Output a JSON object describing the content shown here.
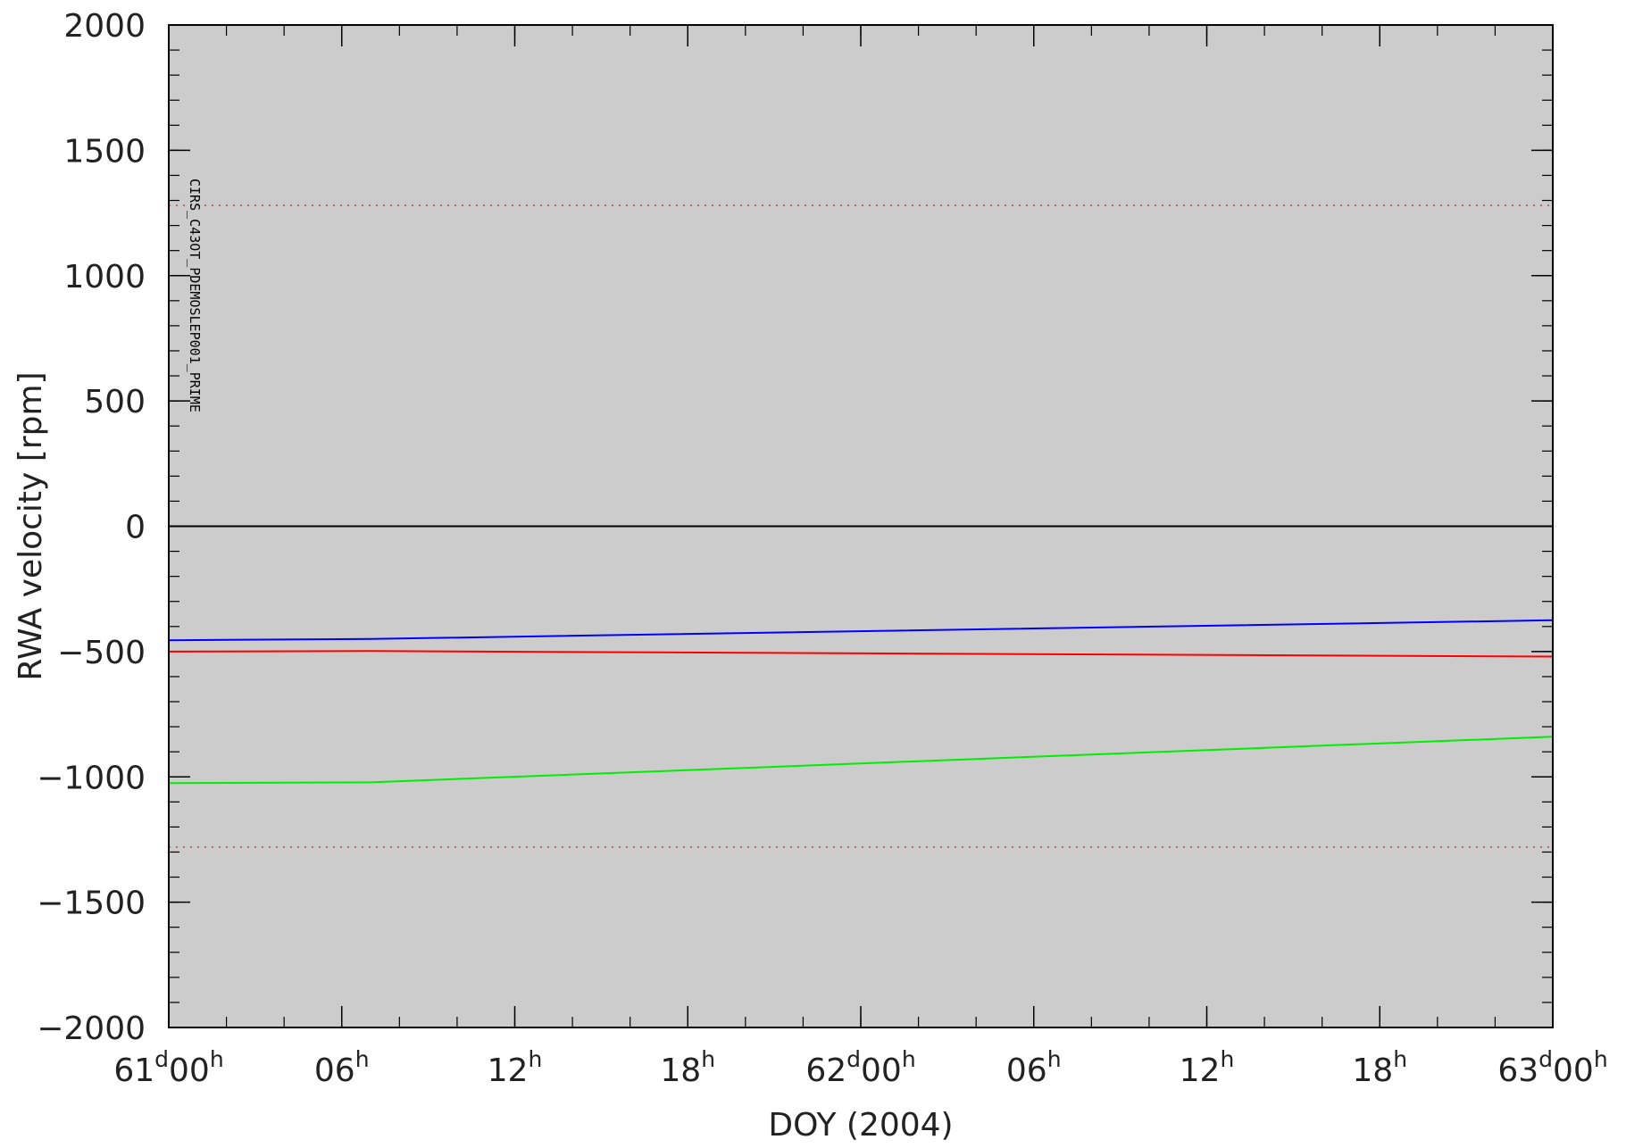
{
  "chart_data": {
    "type": "line",
    "xlabel": "DOY (2004)",
    "ylabel": "RWA velocity [rpm]",
    "xlim": [
      0,
      48
    ],
    "ylim": [
      -2000,
      2000
    ],
    "x_unit": "hours from 61d00h",
    "y_ticks": [
      2000,
      1500,
      1000,
      500,
      0,
      -500,
      -1000,
      -1500,
      -2000
    ],
    "y_tick_labels": [
      "2000",
      "1500",
      "1000",
      "500",
      "0",
      "−5​00",
      "−1000",
      "−1500",
      "−2000"
    ],
    "x_ticks": [
      {
        "x": 0,
        "main": "61",
        "sup1": "d",
        "main2": "00",
        "sup2": "h"
      },
      {
        "x": 6,
        "main": "06",
        "sup1": "h"
      },
      {
        "x": 12,
        "main": "12",
        "sup1": "h"
      },
      {
        "x": 18,
        "main": "18",
        "sup1": "h"
      },
      {
        "x": 24,
        "main": "62",
        "sup1": "d",
        "main2": "00",
        "sup2": "h"
      },
      {
        "x": 30,
        "main": "06",
        "sup1": "h"
      },
      {
        "x": 36,
        "main": "12",
        "sup1": "h"
      },
      {
        "x": 42,
        "main": "18",
        "sup1": "h"
      },
      {
        "x": 48,
        "main": "63",
        "sup1": "d",
        "main2": "00",
        "sup2": "h"
      }
    ],
    "limit_lines": [
      1280,
      -1280
    ],
    "annotation": {
      "text": "CIRS_C43OT_PDEMOSLEP001_PRIME",
      "x": 0.5
    },
    "series": [
      {
        "color": "#000000",
        "x": [
          0,
          7,
          48
        ],
        "y": [
          0,
          0,
          0
        ]
      },
      {
        "color": "#0000ff",
        "x": [
          0,
          7,
          48
        ],
        "y": [
          -455,
          -450,
          -375
        ]
      },
      {
        "color": "#ff0000",
        "x": [
          0,
          7,
          48
        ],
        "y": [
          -500,
          -498,
          -520
        ]
      },
      {
        "color": "#00ee00",
        "x": [
          0,
          7,
          48
        ],
        "y": [
          -1025,
          -1022,
          -840
        ]
      }
    ],
    "colors": {
      "plot_bg": "#cccccc",
      "limit_line": "#a05050"
    }
  }
}
